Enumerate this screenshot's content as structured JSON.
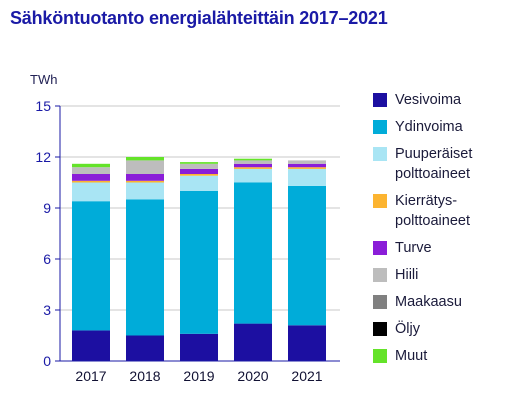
{
  "chart_data": {
    "type": "bar",
    "stacked": true,
    "title": "Sähköntuotanto energialähteittäin 2017–2021",
    "ylabel": "TWh",
    "ylim": [
      0,
      15
    ],
    "yticks": [
      0,
      3,
      6,
      9,
      12,
      15
    ],
    "grid": true,
    "legend_position": "right",
    "categories": [
      "2017",
      "2018",
      "2019",
      "2020",
      "2021"
    ],
    "series": [
      {
        "name": "Vesivoima",
        "color": "#1c0fa1",
        "values": [
          1.8,
          1.5,
          1.6,
          2.2,
          2.1
        ]
      },
      {
        "name": "Ydinvoima",
        "color": "#00acd9",
        "values": [
          7.6,
          8.0,
          8.4,
          8.3,
          8.2
        ]
      },
      {
        "name": "Puuperäiset\npolttoaineet",
        "color": "#a9e5f4",
        "values": [
          1.1,
          1.0,
          0.9,
          0.8,
          1.0
        ]
      },
      {
        "name": "Kierrätys-\npolttoaineet",
        "color": "#fcb430",
        "values": [
          0.1,
          0.1,
          0.1,
          0.1,
          0.1
        ]
      },
      {
        "name": "Turve",
        "color": "#8a1dd8",
        "values": [
          0.4,
          0.4,
          0.3,
          0.2,
          0.2
        ]
      },
      {
        "name": "Hiili",
        "color": "#bdbdbd",
        "values": [
          0.4,
          0.8,
          0.3,
          0.2,
          0.2
        ]
      },
      {
        "name": "Maakaasu",
        "color": "#808080",
        "values": [
          0.0,
          0.0,
          0.0,
          0.0,
          0.0
        ]
      },
      {
        "name": "Öljy",
        "color": "#000000",
        "values": [
          0.0,
          0.0,
          0.0,
          0.0,
          0.0
        ]
      },
      {
        "name": "Muut",
        "color": "#64e329",
        "values": [
          0.2,
          0.2,
          0.1,
          0.1,
          0.0
        ]
      }
    ]
  }
}
